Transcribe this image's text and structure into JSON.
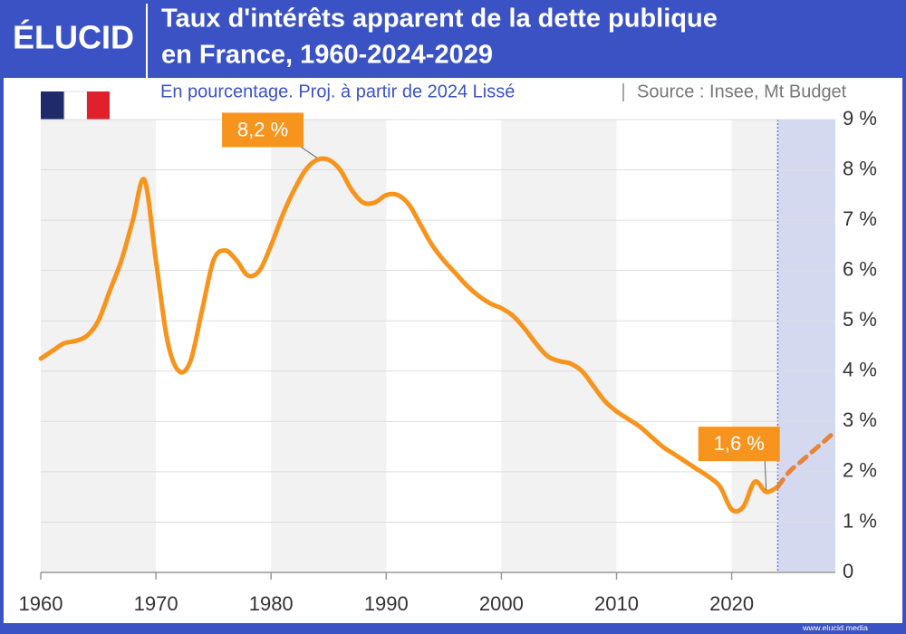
{
  "brand": "ÉLUCID",
  "footer": "www.elucid.media",
  "chart_data": {
    "type": "line",
    "title": [
      "Taux d'intérêts apparent de la dette publique",
      "en France, 1960-2024-2029"
    ],
    "subtitle": "En pourcentage. Proj. à partir de 2024 Lissé",
    "source": "Source : Insee, Mt Budget",
    "x": [
      1960,
      1961,
      1962,
      1963,
      1964,
      1965,
      1966,
      1967,
      1968,
      1969,
      1970,
      1971,
      1972,
      1973,
      1974,
      1975,
      1976,
      1977,
      1978,
      1979,
      1980,
      1981,
      1982,
      1983,
      1984,
      1985,
      1986,
      1987,
      1988,
      1989,
      1990,
      1991,
      1992,
      1993,
      1994,
      1995,
      1996,
      1997,
      1998,
      1999,
      2000,
      2001,
      2002,
      2003,
      2004,
      2005,
      2006,
      2007,
      2008,
      2009,
      2010,
      2011,
      2012,
      2013,
      2014,
      2015,
      2016,
      2017,
      2018,
      2019,
      2020,
      2021,
      2022,
      2023,
      2024,
      2025,
      2026,
      2027,
      2028,
      2029
    ],
    "series": [
      {
        "color": "#f7941d",
        "dashed": false,
        "values": [
          4.25,
          4.4,
          4.55,
          4.6,
          4.7,
          5.0,
          5.6,
          6.2,
          7.0,
          7.8,
          6.2,
          4.6,
          4.0,
          4.2,
          5.2,
          6.2,
          6.4,
          6.2,
          5.9,
          6.0,
          6.5,
          7.1,
          7.6,
          8.0,
          8.2,
          8.2,
          8.0,
          7.6,
          7.35,
          7.35,
          7.5,
          7.5,
          7.3,
          6.9,
          6.5,
          6.2,
          5.95,
          5.7,
          5.5,
          5.35,
          5.25,
          5.1,
          4.85,
          4.55,
          4.3,
          4.2,
          4.15,
          4.0,
          3.7,
          3.4,
          3.2,
          3.05,
          2.9,
          2.7,
          2.5,
          2.35,
          2.2,
          2.05,
          1.9,
          1.7,
          1.25,
          1.3,
          1.8,
          1.6,
          1.7,
          null,
          null,
          null,
          null,
          null
        ]
      },
      {
        "color": "#e8833a",
        "dashed": true,
        "values": [
          null,
          null,
          null,
          null,
          null,
          null,
          null,
          null,
          null,
          null,
          null,
          null,
          null,
          null,
          null,
          null,
          null,
          null,
          null,
          null,
          null,
          null,
          null,
          null,
          null,
          null,
          null,
          null,
          null,
          null,
          null,
          null,
          null,
          null,
          null,
          null,
          null,
          null,
          null,
          null,
          null,
          null,
          null,
          null,
          null,
          null,
          null,
          null,
          null,
          null,
          null,
          null,
          null,
          null,
          null,
          null,
          null,
          null,
          null,
          null,
          null,
          null,
          null,
          null,
          1.7,
          2.0,
          2.2,
          2.4,
          2.6,
          2.8
        ]
      }
    ],
    "projection_start": 2024,
    "annotations": [
      {
        "text": "8,2 %",
        "x": 1984,
        "y": 8.2
      },
      {
        "text": "1,6 %",
        "x": 2023,
        "y": 1.6
      }
    ],
    "xlim": [
      1960,
      2029
    ],
    "xticks": [
      1960,
      1970,
      1980,
      1990,
      2000,
      2010,
      2020
    ],
    "ylim": [
      0,
      9
    ],
    "yticks": [
      0,
      {
        "value": 1,
        "label": "1 %"
      },
      {
        "value": 2,
        "label": "2 %"
      },
      {
        "value": 3,
        "label": "3 %"
      },
      {
        "value": 4,
        "label": "4 %"
      },
      {
        "value": 5,
        "label": "5 %"
      },
      {
        "value": 6,
        "label": "6 %"
      },
      {
        "value": 7,
        "label": "7 %"
      },
      {
        "value": 8,
        "label": "8 %"
      },
      {
        "value": 9,
        "label": "9 %"
      }
    ],
    "grid": true
  }
}
